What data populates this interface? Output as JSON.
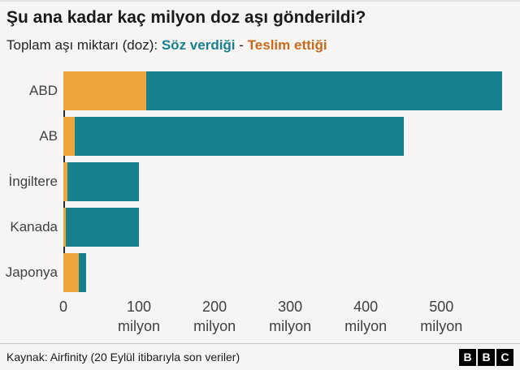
{
  "title": "Şu ana kadar kaç milyon doz aşı gönderildi?",
  "legend": {
    "prefix": "Toplam aşı miktarı (doz):",
    "promised_label": "Söz verdiği",
    "separator": "-",
    "delivered_label": "Teslim ettiği"
  },
  "colors": {
    "promised_bar": "#17808F",
    "delivered_bar": "#EEA63C",
    "promised_text": "#17808F",
    "delivered_text": "#C96A1A"
  },
  "chart_data": {
    "type": "bar",
    "orientation": "horizontal",
    "title": "Şu ana kadar kaç milyon doz aşı gönderildi?",
    "categories": [
      "ABD",
      "AB",
      "İngiltere",
      "Kanada",
      "Japonya"
    ],
    "series": [
      {
        "name": "Söz verdiği",
        "values": [
          580,
          450,
          100,
          100,
          30
        ]
      },
      {
        "name": "Teslim ettiği",
        "values": [
          110,
          15,
          5,
          3,
          20
        ]
      }
    ],
    "unit": "milyon",
    "x_ticks": [
      0,
      100,
      200,
      300,
      400,
      500
    ],
    "x_tick_suffix": "milyon",
    "x_max": 604,
    "xlabel": "",
    "ylabel": "",
    "grid": false,
    "legend_position": "top"
  },
  "footer": {
    "source": "Kaynak: Airfinity (20 Eylül itibarıyla son veriler)",
    "logo_letters": [
      "B",
      "B",
      "C"
    ]
  }
}
